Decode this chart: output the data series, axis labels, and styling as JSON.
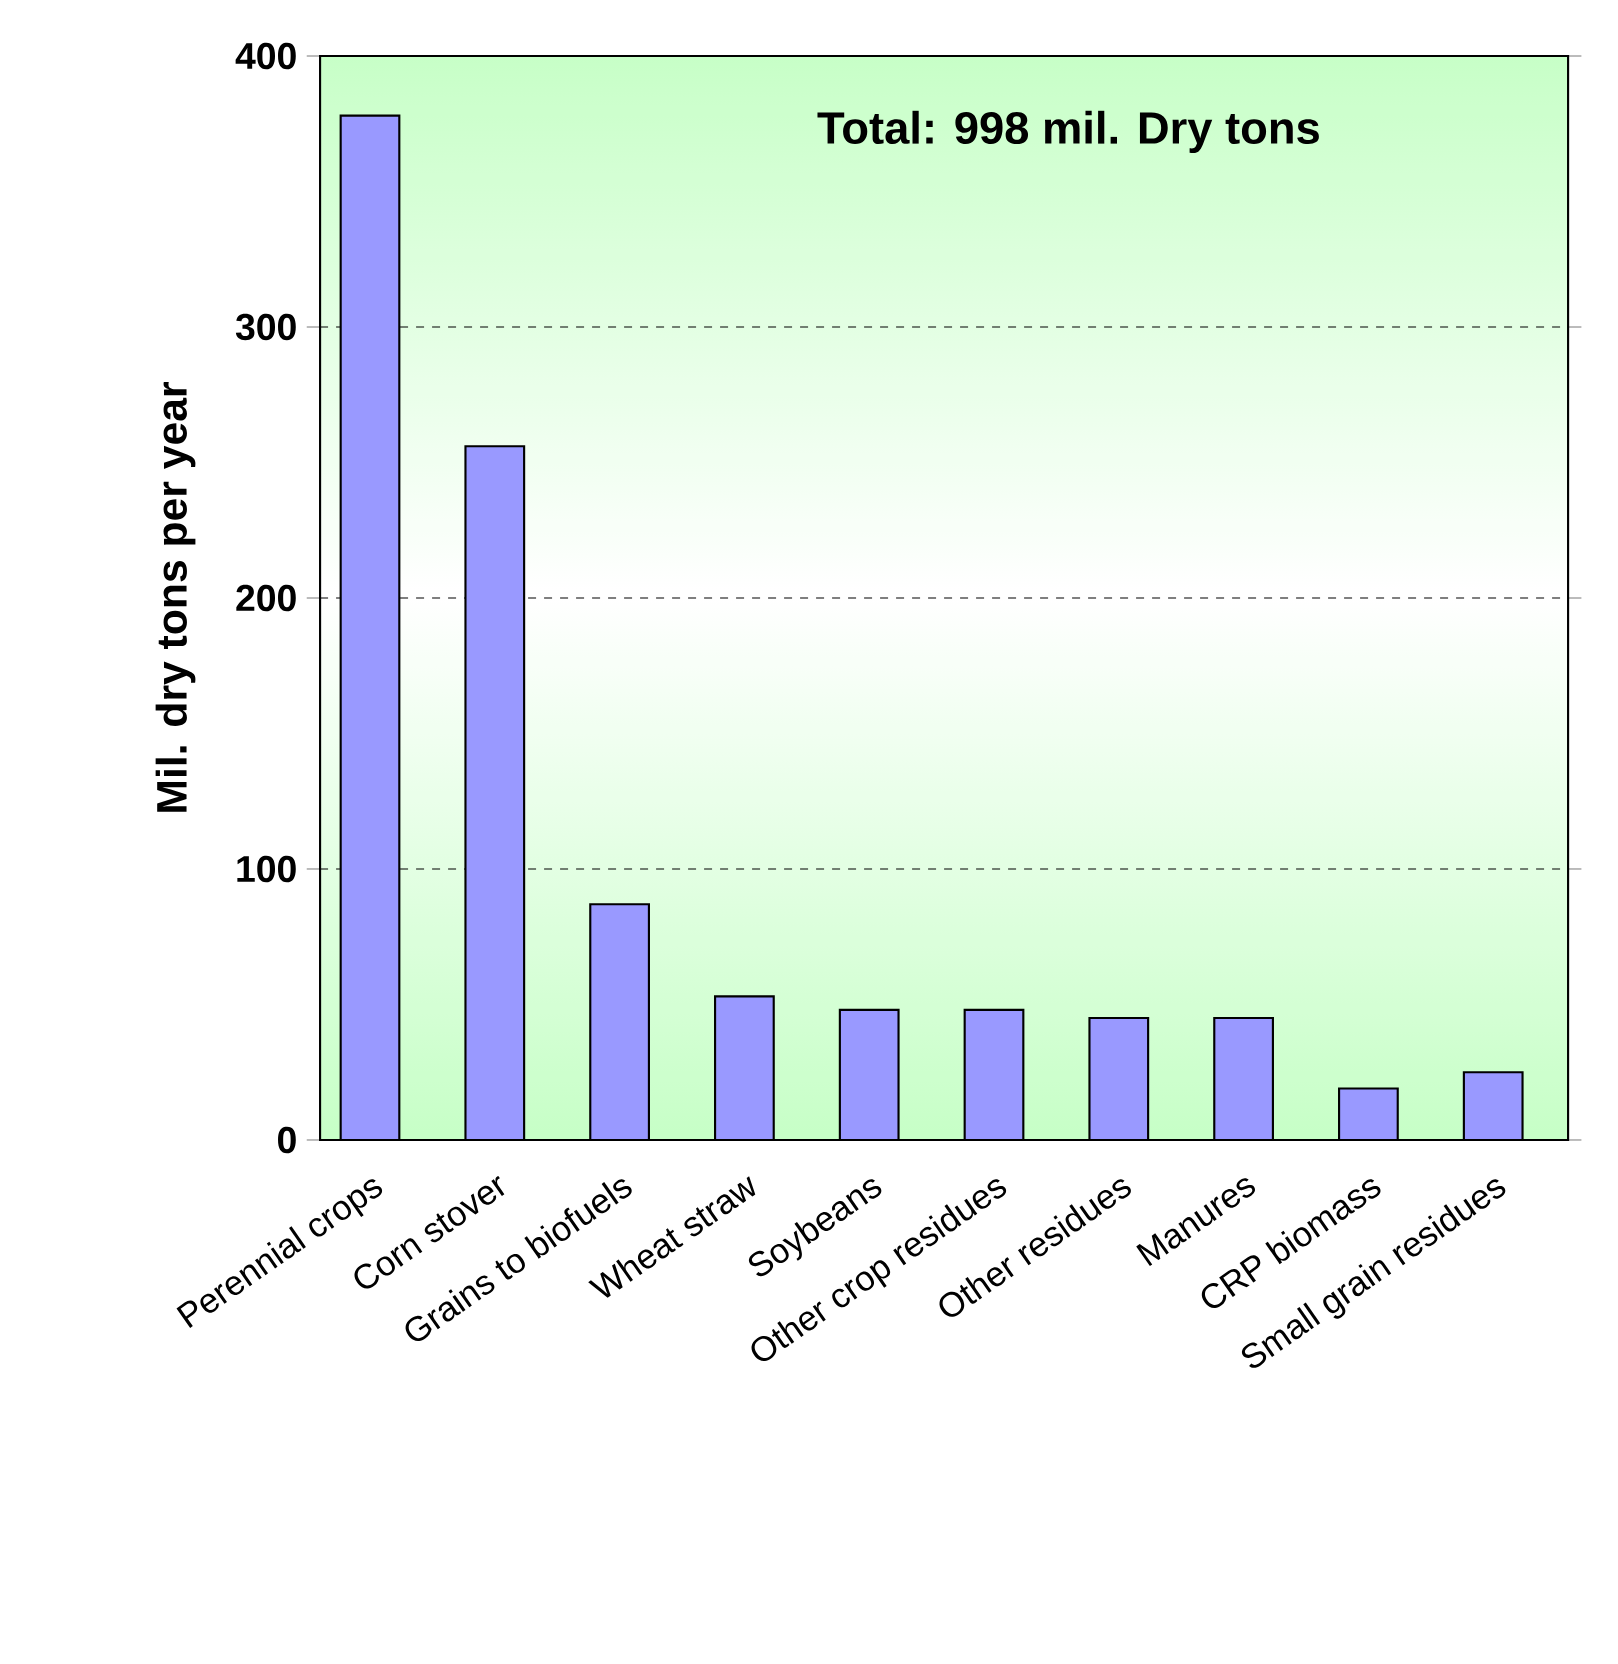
{
  "chart_data": {
    "type": "bar",
    "ylabel": "Mil. dry tons per year",
    "annotations": [
      "Total: 998 mil. Dry tons"
    ],
    "categories": [
      "Perennial crops",
      "Corn stover",
      "Grains to biofuels",
      "Wheat straw",
      "Soybeans",
      "Other crop residues",
      "Other residues",
      "Manures",
      "CRP biomass",
      "Small grain residues"
    ],
    "values": [
      378,
      256,
      87,
      53,
      48,
      48,
      45,
      45,
      19,
      25
    ],
    "color": "#9999ff",
    "ylim": [
      0,
      400
    ],
    "yticks": [
      0,
      100,
      200,
      300,
      400
    ],
    "grid": "y"
  }
}
